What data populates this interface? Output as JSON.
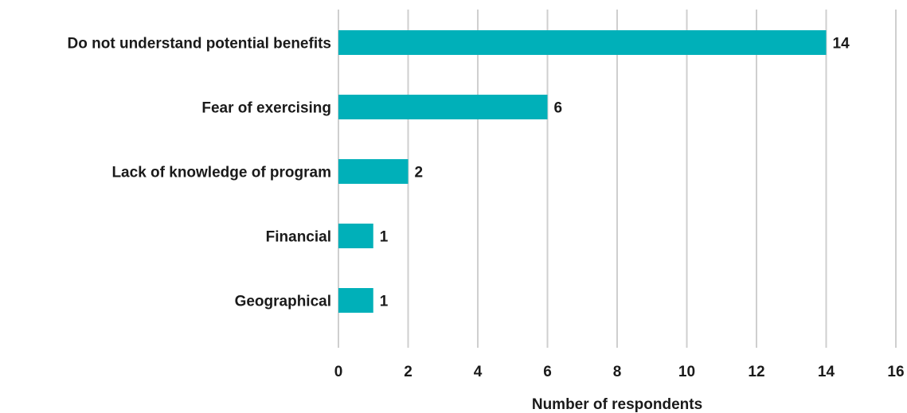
{
  "chart_data": {
    "type": "bar",
    "orientation": "horizontal",
    "categories": [
      "Do not understand potential benefits",
      "Fear of exercising",
      "Lack of knowledge of program",
      "Financial",
      "Geographical"
    ],
    "values": [
      14,
      6,
      2,
      1,
      1
    ],
    "data_labels": [
      "14",
      "6",
      "2",
      "1",
      "1"
    ],
    "title": "",
    "xlabel": "Number of respondents",
    "ylabel": "",
    "xlim": [
      0,
      16
    ],
    "x_ticks": [
      0,
      2,
      4,
      6,
      8,
      10,
      12,
      14,
      16
    ],
    "x_tick_labels": [
      "0",
      "2",
      "4",
      "6",
      "8",
      "10",
      "12",
      "14",
      "16"
    ],
    "grid": "vertical",
    "legend": "none",
    "bar_color": "#00b0b9",
    "grid_color": "#cfcfcf",
    "text_color": "#1a1a1a"
  }
}
